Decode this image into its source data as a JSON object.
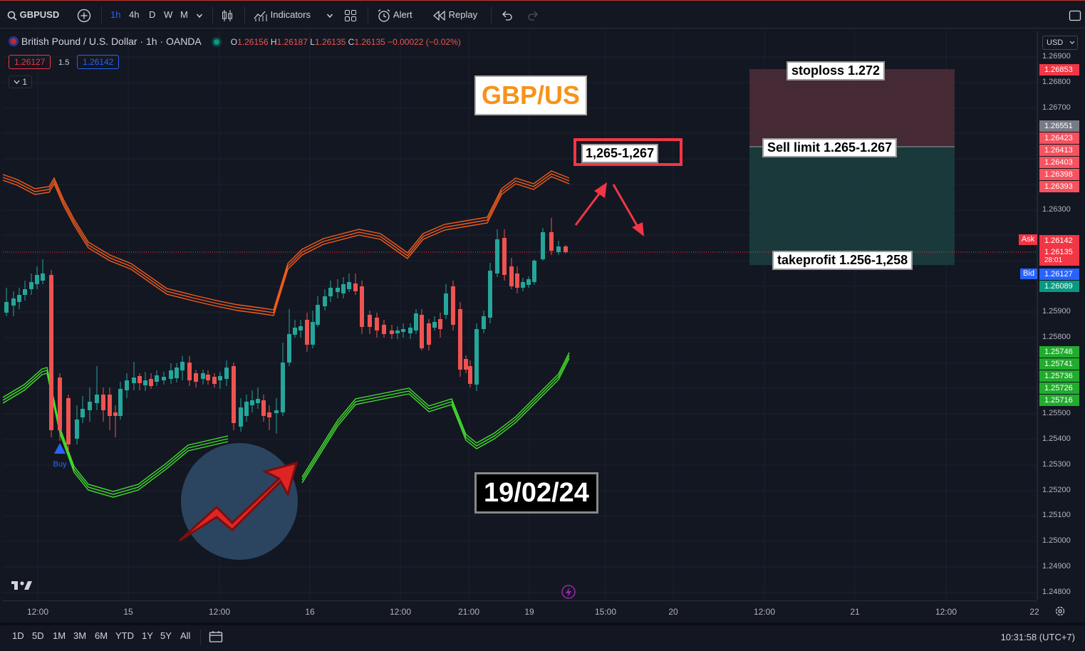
{
  "toolbar": {
    "symbol": "GBPUSD",
    "intervals": [
      "1h",
      "4h",
      "D",
      "W",
      "M"
    ],
    "indicators_label": "Indicators",
    "alert_label": "Alert",
    "replay_label": "Replay"
  },
  "legend": {
    "title": "British Pound / U.S. Dollar · 1h · OANDA",
    "o_label": "O",
    "o": "1.26156",
    "h_label": "H",
    "h": "1.26187",
    "l_label": "L",
    "l": "1.26135",
    "c_label": "C",
    "c": "1.26135",
    "change": "−0.00022 (−0.02%)",
    "sell_price": "1.26127",
    "spread": "1.5",
    "buy_price": "1.26142",
    "collapse_count": "1"
  },
  "annotations": {
    "pair_title": "GBP/US",
    "zone": "1,265-1,267",
    "stoploss": "stoploss 1.272",
    "sell_limit": "Sell limit 1.265-1.267",
    "takeprofit": "takeprofit 1.256-1,258",
    "date": "19/02/24",
    "buy_marker": "Buy"
  },
  "price_axis": {
    "currency": "USD",
    "ticks": [
      "1.26900",
      "1.26800",
      "1.26700",
      "1.26300",
      "1.25900",
      "1.25800",
      "1.25500",
      "1.25400",
      "1.25300",
      "1.25200",
      "1.25100",
      "1.25000",
      "1.24900",
      "1.24800"
    ],
    "tags": [
      {
        "text": "1.26853",
        "color": "#f23645"
      },
      {
        "text": "1.26551",
        "color": "#787b86"
      },
      {
        "text": "1.26423",
        "color": "#f7525f"
      },
      {
        "text": "1.26413",
        "color": "#f7525f"
      },
      {
        "text": "1.26403",
        "color": "#f7525f"
      },
      {
        "text": "1.26398",
        "color": "#f7525f"
      },
      {
        "text": "1.26393",
        "color": "#f7525f"
      },
      {
        "text": "1.26142",
        "color": "#f23645"
      },
      {
        "text": "1.26135",
        "color": "#f23645"
      },
      {
        "text": "28:01",
        "color": "#f23645"
      },
      {
        "text": "1.26127",
        "color": "#2962ff"
      },
      {
        "text": "1.26089",
        "color": "#089981"
      },
      {
        "text": "1.25746",
        "color": "#22ab2e"
      },
      {
        "text": "1.25741",
        "color": "#22ab2e"
      },
      {
        "text": "1.25736",
        "color": "#22ab2e"
      },
      {
        "text": "1.25726",
        "color": "#22ab2e"
      },
      {
        "text": "1.25716",
        "color": "#22ab2e"
      }
    ],
    "ask_label": "Ask",
    "bid_label": "Bid"
  },
  "time_axis": {
    "labels": [
      "12:00",
      "15",
      "12:00",
      "16",
      "12:00",
      "21:00",
      "19",
      "15:00",
      "20",
      "12:00",
      "21",
      "12:00",
      "22"
    ]
  },
  "bottom": {
    "ranges": [
      "1D",
      "5D",
      "1M",
      "3M",
      "6M",
      "YTD",
      "1Y",
      "5Y",
      "All"
    ],
    "clock": "10:31:58 (UTC+7)"
  },
  "colors": {
    "up": "#26a69a",
    "down": "#ef5350",
    "upper_band": "#f25c1d",
    "lower_band": "#43e02c",
    "stop_zone": "#4b2b36",
    "profit_zone": "#1a3b3d"
  }
}
